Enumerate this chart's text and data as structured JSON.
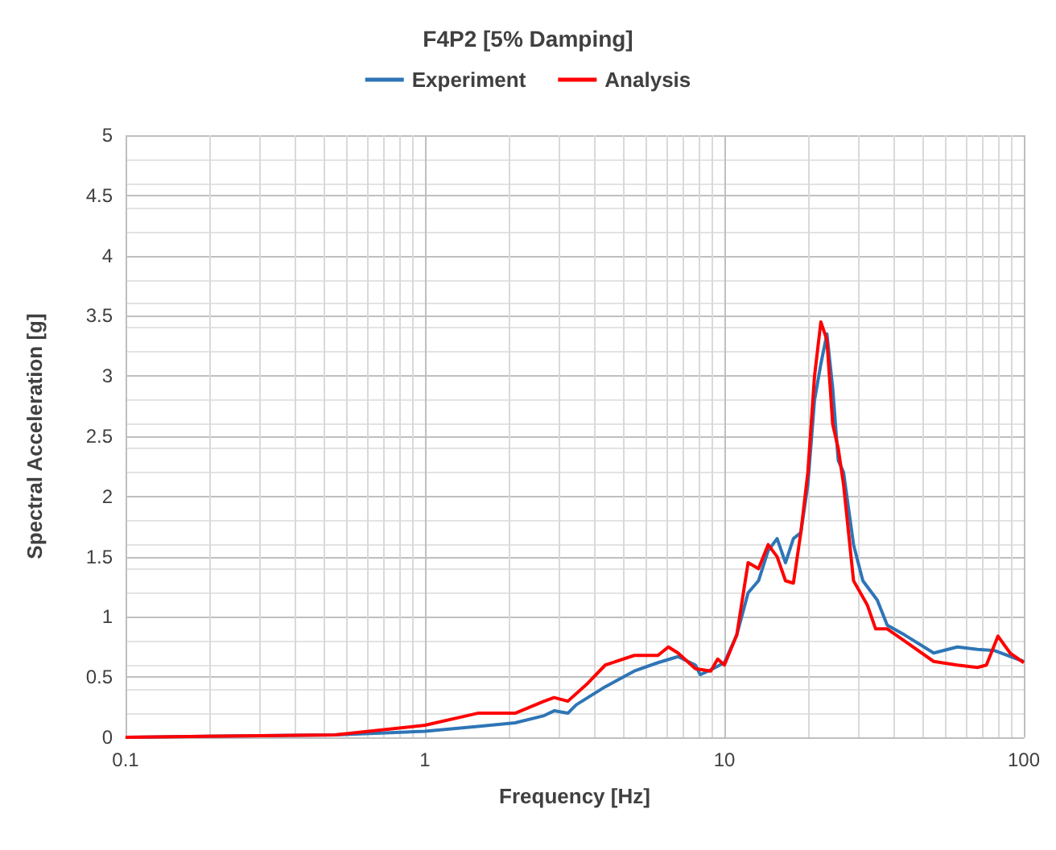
{
  "chart_data": {
    "type": "line",
    "title": "F4P2 [5% Damping]",
    "xlabel": "Frequency [Hz]",
    "ylabel": "Spectral Acceleration [g]",
    "log": "x",
    "grid": true,
    "legend": "top",
    "marker": "none",
    "line_style": "solid",
    "xlim": [
      0.1,
      100
    ],
    "xticks": [
      0.1,
      1,
      10,
      100
    ],
    "ylim": [
      0,
      5
    ],
    "yticks": [
      0,
      0.5,
      1,
      1.5,
      2,
      2.5,
      3,
      3.5,
      4,
      4.5,
      5
    ],
    "series": [
      {
        "name": "Experiment",
        "color": "#2e75b6",
        "x": [
          0.1,
          0.5,
          1,
          1.5,
          2,
          2.5,
          2.7,
          3,
          3.2,
          4,
          5,
          6,
          7,
          8,
          8.3,
          9,
          10,
          11,
          12,
          13,
          14,
          15,
          16,
          17,
          18,
          19,
          20,
          21,
          22,
          23,
          24,
          25,
          27,
          29,
          32.4,
          35,
          40,
          50,
          60,
          70,
          80,
          100
        ],
        "values": [
          0,
          0.02,
          0.05,
          0.09,
          0.12,
          0.18,
          0.22,
          0.2,
          0.27,
          0.42,
          0.55,
          0.62,
          0.67,
          0.6,
          0.52,
          0.56,
          0.62,
          0.85,
          1.2,
          1.3,
          1.55,
          1.65,
          1.45,
          1.65,
          1.7,
          2.1,
          2.8,
          3.1,
          3.35,
          2.9,
          2.3,
          2.2,
          1.6,
          1.3,
          1.14,
          0.93,
          0.85,
          0.7,
          0.75,
          0.73,
          0.72,
          0.63
        ]
      },
      {
        "name": "Analysis",
        "color": "#ff0000",
        "x": [
          0.1,
          0.5,
          1,
          1.5,
          2,
          2.5,
          2.7,
          3,
          3.5,
          4,
          5,
          6,
          6.5,
          7,
          8,
          9,
          9.5,
          10,
          11,
          12,
          13,
          14,
          15,
          16,
          17,
          18,
          19,
          20,
          21,
          22,
          23,
          24,
          25,
          27,
          30,
          32,
          35,
          40,
          50,
          60,
          70,
          75,
          82,
          90,
          100
        ],
        "values": [
          0,
          0.02,
          0.1,
          0.2,
          0.2,
          0.3,
          0.33,
          0.3,
          0.45,
          0.6,
          0.68,
          0.68,
          0.75,
          0.7,
          0.57,
          0.55,
          0.65,
          0.6,
          0.85,
          1.45,
          1.4,
          1.6,
          1.5,
          1.3,
          1.28,
          1.7,
          2.2,
          3.0,
          3.45,
          3.3,
          2.6,
          2.4,
          2.1,
          1.3,
          1.1,
          0.9,
          0.9,
          0.8,
          0.63,
          0.6,
          0.58,
          0.6,
          0.84,
          0.7,
          0.62
        ]
      }
    ]
  }
}
